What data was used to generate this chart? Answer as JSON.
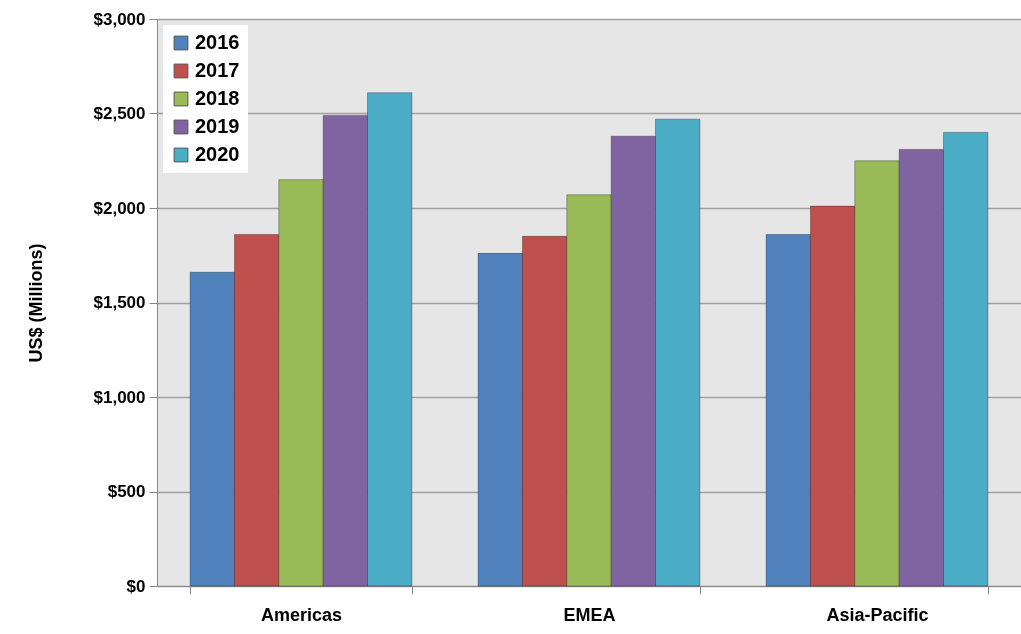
{
  "chart_data": {
    "type": "bar",
    "ylabel": "US$ (Millions)",
    "categories": [
      "Americas",
      "EMEA",
      "Asia-Pacific"
    ],
    "series": [
      {
        "name": "2016",
        "color": "#4f81bd",
        "values": [
          1660,
          1760,
          1860
        ]
      },
      {
        "name": "2017",
        "color": "#c0504d",
        "values": [
          1860,
          1850,
          2010
        ]
      },
      {
        "name": "2018",
        "color": "#9bbb59",
        "values": [
          2150,
          2070,
          2250
        ]
      },
      {
        "name": "2019",
        "color": "#8064a2",
        "values": [
          2490,
          2380,
          2310
        ]
      },
      {
        "name": "2020",
        "color": "#4bacc6",
        "values": [
          2610,
          2470,
          2400
        ]
      }
    ],
    "ylim": [
      0,
      3000
    ],
    "yticks": [
      {
        "value": 0,
        "label": "$0"
      },
      {
        "value": 500,
        "label": "$500"
      },
      {
        "value": 1000,
        "label": "$1,000"
      },
      {
        "value": 1500,
        "label": "$1,500"
      },
      {
        "value": 2000,
        "label": "$2,000"
      },
      {
        "value": 2500,
        "label": "$2,500"
      },
      {
        "value": 3000,
        "label": "$3,000"
      }
    ],
    "grid": "y",
    "legend": "top left"
  }
}
